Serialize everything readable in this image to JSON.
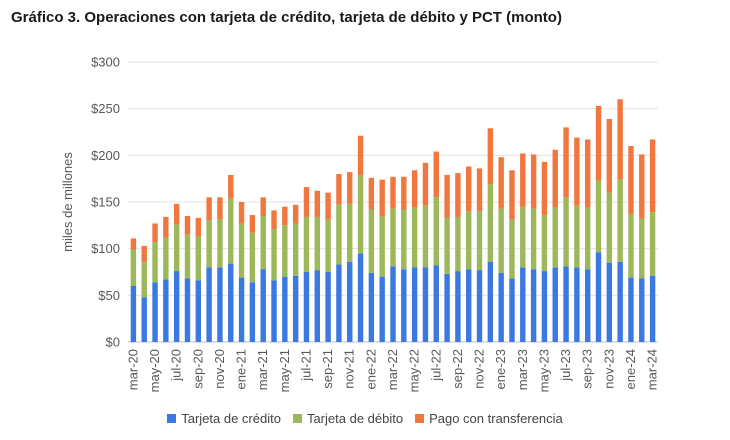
{
  "title": "Gráfico 3. Operaciones con tarjeta de crédito, tarjeta de débito y PCT (monto)",
  "chart_data": {
    "type": "bar",
    "stacked": true,
    "title": "Gráfico 3. Operaciones con tarjeta de crédito, tarjeta de débito y PCT (monto)",
    "xlabel": "",
    "ylabel": "miles de millones",
    "ylim": [
      0,
      300
    ],
    "yticks": [
      0,
      50,
      100,
      150,
      200,
      250,
      300
    ],
    "ytick_labels": [
      "$0",
      "$50",
      "$100",
      "$150",
      "$200",
      "$250",
      "$300"
    ],
    "grid": true,
    "legend_position": "bottom",
    "categories": [
      "mar-20",
      "abr-20",
      "may-20",
      "jun-20",
      "jul-20",
      "ago-20",
      "sep-20",
      "oct-20",
      "nov-20",
      "dic-20",
      "ene-21",
      "feb-21",
      "mar-21",
      "abr-21",
      "may-21",
      "jun-21",
      "jul-21",
      "ago-21",
      "sep-21",
      "oct-21",
      "nov-21",
      "dic-21",
      "ene-22",
      "feb-22",
      "mar-22",
      "abr-22",
      "may-22",
      "jun-22",
      "jul-22",
      "ago-22",
      "sep-22",
      "oct-22",
      "nov-22",
      "dic-22",
      "ene-23",
      "feb-23",
      "mar-23",
      "abr-23",
      "may-23",
      "jun-23",
      "jul-23",
      "ago-23",
      "sep-23",
      "oct-23",
      "nov-23",
      "dic-23",
      "ene-24",
      "feb-24",
      "mar-24"
    ],
    "visible_tick_labels": [
      "mar-20",
      "may-20",
      "jul-20",
      "sep-20",
      "nov-20",
      "ene-21",
      "mar-21",
      "may-21",
      "jul-21",
      "sep-21",
      "nov-21",
      "ene-22",
      "mar-22",
      "may-22",
      "jul-22",
      "sep-22",
      "nov-22",
      "ene-23",
      "mar-23",
      "may-23",
      "jul-23",
      "sep-23",
      "nov-23",
      "ene-24",
      "mar-24"
    ],
    "series": [
      {
        "name": "Tarjeta de crédito",
        "color": "#3b78e0",
        "values": [
          60,
          48,
          64,
          67,
          76,
          68,
          66,
          80,
          80,
          84,
          69,
          64,
          78,
          66,
          70,
          71,
          75,
          77,
          75,
          83,
          86,
          95,
          74,
          70,
          81,
          78,
          80,
          80,
          82,
          73,
          76,
          78,
          77,
          86,
          74,
          68,
          80,
          78,
          76,
          80,
          81,
          80,
          78,
          96,
          85,
          86,
          69,
          68,
          71
        ]
      },
      {
        "name": "Tarjeta de débito",
        "color": "#9cb85a",
        "values": [
          39,
          38,
          43,
          45,
          50,
          47,
          47,
          50,
          51,
          70,
          58,
          53,
          57,
          55,
          55,
          56,
          59,
          57,
          56,
          64,
          62,
          84,
          68,
          65,
          62,
          64,
          64,
          66,
          73,
          60,
          58,
          62,
          63,
          83,
          69,
          63,
          65,
          65,
          60,
          64,
          74,
          66,
          66,
          77,
          75,
          88,
          68,
          64,
          68
        ]
      },
      {
        "name": "Pago con transferencia",
        "color": "#f0773f",
        "values": [
          12,
          17,
          20,
          22,
          22,
          20,
          20,
          25,
          24,
          25,
          23,
          19,
          20,
          20,
          20,
          20,
          32,
          28,
          29,
          33,
          34,
          42,
          34,
          39,
          34,
          35,
          40,
          46,
          49,
          46,
          47,
          48,
          46,
          60,
          55,
          53,
          57,
          58,
          57,
          62,
          75,
          73,
          73,
          80,
          79,
          86,
          73,
          69,
          78
        ]
      }
    ]
  }
}
